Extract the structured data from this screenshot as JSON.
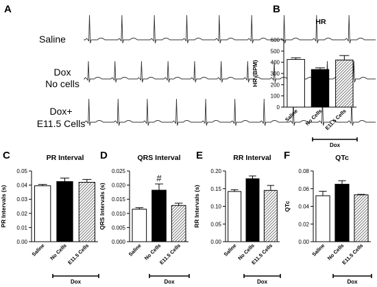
{
  "panel_a": {
    "letter": "A",
    "traces": [
      {
        "label_lines": [
          "Saline"
        ],
        "beats": 9
      },
      {
        "label_lines": [
          "Dox",
          "No cells"
        ],
        "beats": 11
      },
      {
        "label_lines": [
          "Dox+",
          "E11.5 Cells"
        ],
        "beats": 10
      }
    ]
  },
  "chart_data": [
    {
      "letter": "B",
      "type": "bar",
      "title": "HR",
      "ylabel": "HR (BPM)",
      "ylim": [
        0,
        600
      ],
      "yticks": [
        0,
        100,
        200,
        300,
        400,
        500,
        600
      ],
      "categories": [
        "Saline",
        "No Cells",
        "E11.5 Cells"
      ],
      "values": [
        425,
        335,
        420
      ],
      "errors": [
        15,
        15,
        40
      ],
      "annotations": [
        "",
        "",
        ""
      ],
      "group_label": "Dox",
      "group_span": [
        1,
        2
      ]
    },
    {
      "letter": "C",
      "type": "bar",
      "title": "PR Interval",
      "ylabel": "PR Intervals (s)",
      "ylim": [
        0,
        0.05
      ],
      "yticks": [
        "0.00",
        "0.01",
        "0.02",
        "0.03",
        "0.04",
        "0.05"
      ],
      "categories": [
        "Saline",
        "No Cells",
        "E11.5 Cells"
      ],
      "values": [
        0.0395,
        0.0425,
        0.042
      ],
      "errors": [
        0.001,
        0.0025,
        0.002
      ],
      "annotations": [
        "",
        "",
        ""
      ],
      "group_label": "Dox",
      "group_span": [
        1,
        2
      ]
    },
    {
      "letter": "D",
      "type": "bar",
      "title": "QRS Interval",
      "ylabel": "QRS Intervals (s)",
      "ylim": [
        0,
        0.025
      ],
      "yticks": [
        "0.000",
        "0.005",
        "0.010",
        "0.015",
        "0.020",
        "0.025"
      ],
      "categories": [
        "Saline",
        "No Cells",
        "E11.5 Cells"
      ],
      "values": [
        0.0115,
        0.0182,
        0.0128
      ],
      "errors": [
        0.0005,
        0.0022,
        0.0008
      ],
      "annotations": [
        "",
        "#",
        ""
      ],
      "group_label": "Dox",
      "group_span": [
        1,
        2
      ]
    },
    {
      "letter": "E",
      "type": "bar",
      "title": "RR Interval",
      "ylabel": "RR Intervals (s)",
      "ylim": [
        0,
        0.2
      ],
      "yticks": [
        "0.00",
        "0.05",
        "0.10",
        "0.15",
        "0.20"
      ],
      "categories": [
        "Saline",
        "No Cells",
        "E11.5 Cells"
      ],
      "values": [
        0.142,
        0.178,
        0.145
      ],
      "errors": [
        0.005,
        0.008,
        0.014
      ],
      "annotations": [
        "",
        "",
        ""
      ],
      "group_label": "Dox",
      "group_span": [
        1,
        2
      ]
    },
    {
      "letter": "F",
      "type": "bar",
      "title": "QTc",
      "ylabel": "QTc",
      "ylim": [
        0,
        0.08
      ],
      "yticks": [
        "0.00",
        "0.02",
        "0.04",
        "0.06",
        "0.08"
      ],
      "categories": [
        "Saline",
        "No Cells",
        "E11.5 Cells"
      ],
      "values": [
        0.052,
        0.065,
        0.053
      ],
      "errors": [
        0.005,
        0.004,
        0.0005
      ],
      "annotations": [
        "",
        "",
        ""
      ],
      "group_label": "Dox",
      "group_span": [
        1,
        2
      ]
    }
  ]
}
